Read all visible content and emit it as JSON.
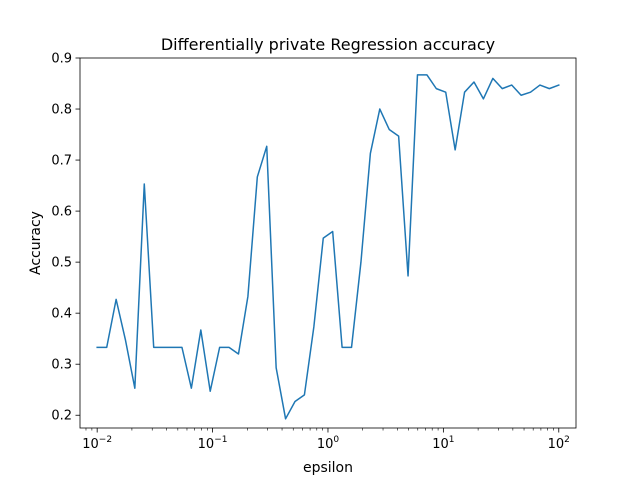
{
  "chart_data": {
    "type": "line",
    "title": "Differentially private Regression accuracy",
    "xlabel": "epsilon",
    "ylabel": "Accuracy",
    "x_scale": "log",
    "xlim": [
      0.0071,
      141
    ],
    "ylim": [
      0.175,
      0.9
    ],
    "x_ticks": [
      {
        "value": 0.01,
        "base": "10",
        "exp": "−2"
      },
      {
        "value": 0.1,
        "base": "10",
        "exp": "−1"
      },
      {
        "value": 1,
        "base": "10",
        "exp": "0"
      },
      {
        "value": 10,
        "base": "10",
        "exp": "1"
      },
      {
        "value": 100,
        "base": "10",
        "exp": "2"
      }
    ],
    "y_ticks": [
      "0.2",
      "0.3",
      "0.4",
      "0.5",
      "0.6",
      "0.7",
      "0.8",
      "0.9"
    ],
    "grid": false,
    "line_color": "#1f77b4",
    "series": [
      {
        "x": [
          0.01,
          0.0121,
          0.0146,
          0.0176,
          0.0212,
          0.0256,
          0.0309,
          0.0373,
          0.045,
          0.0543,
          0.0655,
          0.0791,
          0.0954,
          0.1151,
          0.1389,
          0.1677,
          0.2024,
          0.2442,
          0.2947,
          0.3556,
          0.4292,
          0.5179,
          0.6251,
          0.7543,
          0.9103,
          1.0985,
          1.3257,
          1.5999,
          1.9307,
          2.33,
          2.8118,
          3.3932,
          4.0949,
          4.9417,
          5.9636,
          7.1969,
          8.6851,
          10.4811,
          12.6486,
          15.2642,
          18.4207,
          22.23,
          26.827,
          32.3746,
          39.0694,
          47.1487,
          56.8987,
          68.6649,
          82.8643,
          100
        ],
        "values": [
          0.333,
          0.333,
          0.427,
          0.347,
          0.253,
          0.653,
          0.333,
          0.333,
          0.333,
          0.333,
          0.253,
          0.367,
          0.247,
          0.333,
          0.333,
          0.32,
          0.433,
          0.667,
          0.727,
          0.293,
          0.193,
          0.227,
          0.24,
          0.373,
          0.547,
          0.56,
          0.333,
          0.333,
          0.5,
          0.713,
          0.8,
          0.76,
          0.747,
          0.473,
          0.867,
          0.867,
          0.84,
          0.833,
          0.72,
          0.833,
          0.853,
          0.82,
          0.86,
          0.84,
          0.847,
          0.827,
          0.833,
          0.847,
          0.84,
          0.847
        ]
      }
    ]
  }
}
